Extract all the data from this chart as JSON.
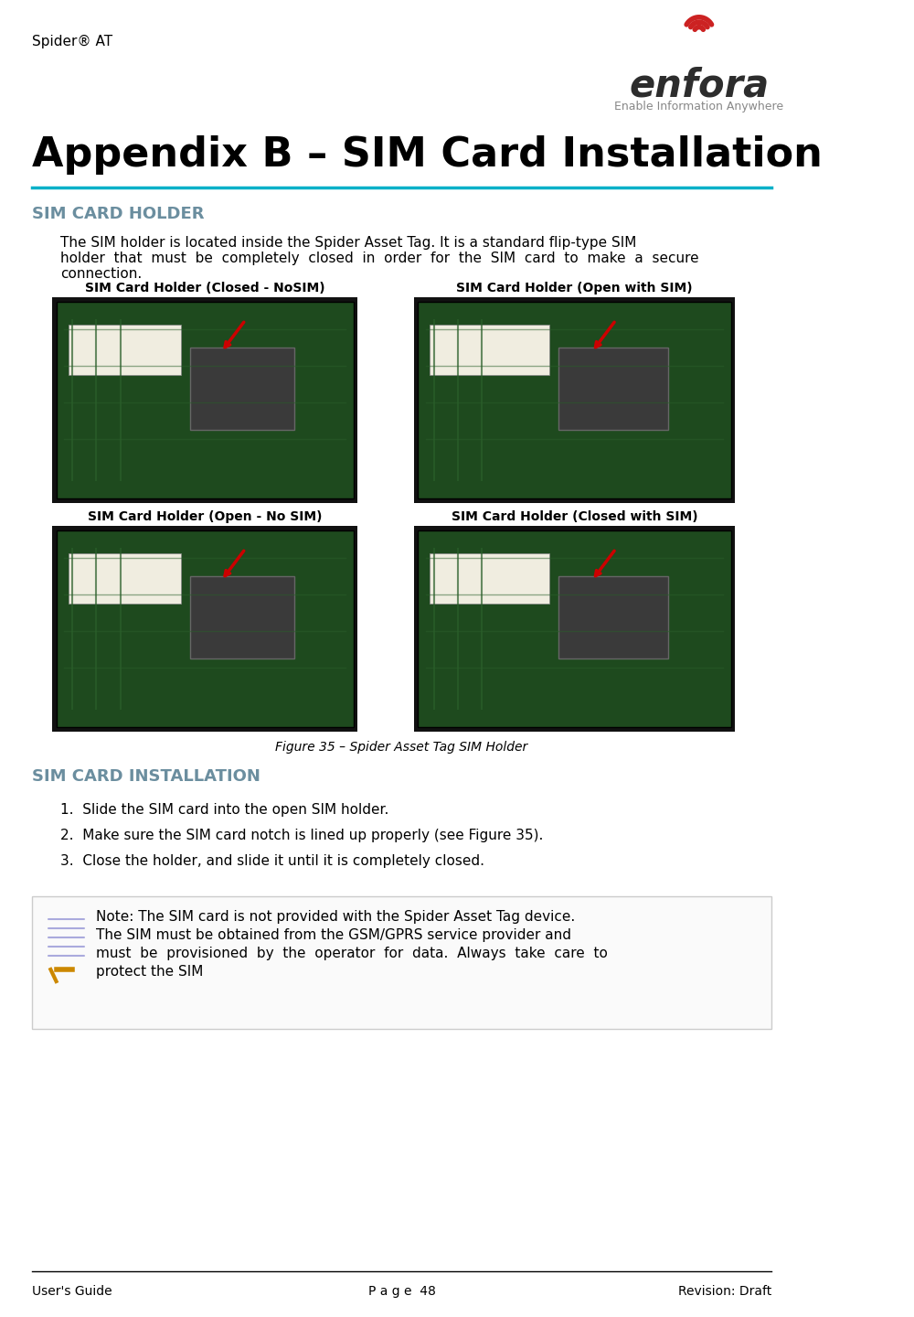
{
  "bg_color": "#ffffff",
  "header_text": "Spider® AT",
  "header_font_size": 11,
  "header_color": "#000000",
  "logo_text": "enfora®",
  "logo_subtitle": "Enable Information Anywhere",
  "title": "Appendix B – SIM Card Installation",
  "title_font_size": 32,
  "title_color": "#000000",
  "title_line_color": "#00b0c8",
  "section1_title": "SIM CARD HOLDER",
  "section1_color": "#6b8e9f",
  "section1_font_size": 13,
  "body1": "The SIM holder is located inside the Spider Asset Tag. It is a standard flip-type SIM\nholder  that  must  be  completely  closed  in  order  for  the  SIM  card  to  make  a  secure\nconnection.",
  "body_font_size": 11,
  "body_color": "#000000",
  "img_label1": "SIM Card Holder (Closed - NoSIM)",
  "img_label2": "SIM Card Holder (Open with SIM)",
  "img_label3": "SIM Card Holder (Open - No SIM)",
  "img_label4": "SIM Card Holder (Closed with SIM)",
  "img_label_font_size": 10,
  "img_label_color": "#000000",
  "fig_caption": "Figure 35 – Spider Asset Tag SIM Holder",
  "fig_caption_font_size": 10,
  "fig_caption_color": "#000000",
  "section2_title": "SIM CARD INSTALLATION",
  "section2_color": "#6b8e9f",
  "section2_font_size": 13,
  "install_steps": [
    "Slide the SIM card into the open SIM holder.",
    "Make sure the SIM card notch is lined up properly (see Figure 35).",
    "Close the holder, and slide it until it is completely closed."
  ],
  "note_text": "Note: The SIM card is not provided with the Spider Asset Tag device.\nThe SIM must be obtained from the GSM/GPRS service provider and\nmust  be  provisioned  by  the  operator  for  data.  Always  take  care  to\nprotect the SIM",
  "note_font_size": 11,
  "note_color": "#000000",
  "footer_left": "User's Guide",
  "footer_center": "P a g e  48",
  "footer_right": "Revision: Draft",
  "footer_font_size": 10,
  "footer_color": "#000000",
  "footer_line_color": "#000000",
  "img_bg_color": "#1a3a1a",
  "img_border_color": "#000000",
  "arrow_color": "#cc0000"
}
